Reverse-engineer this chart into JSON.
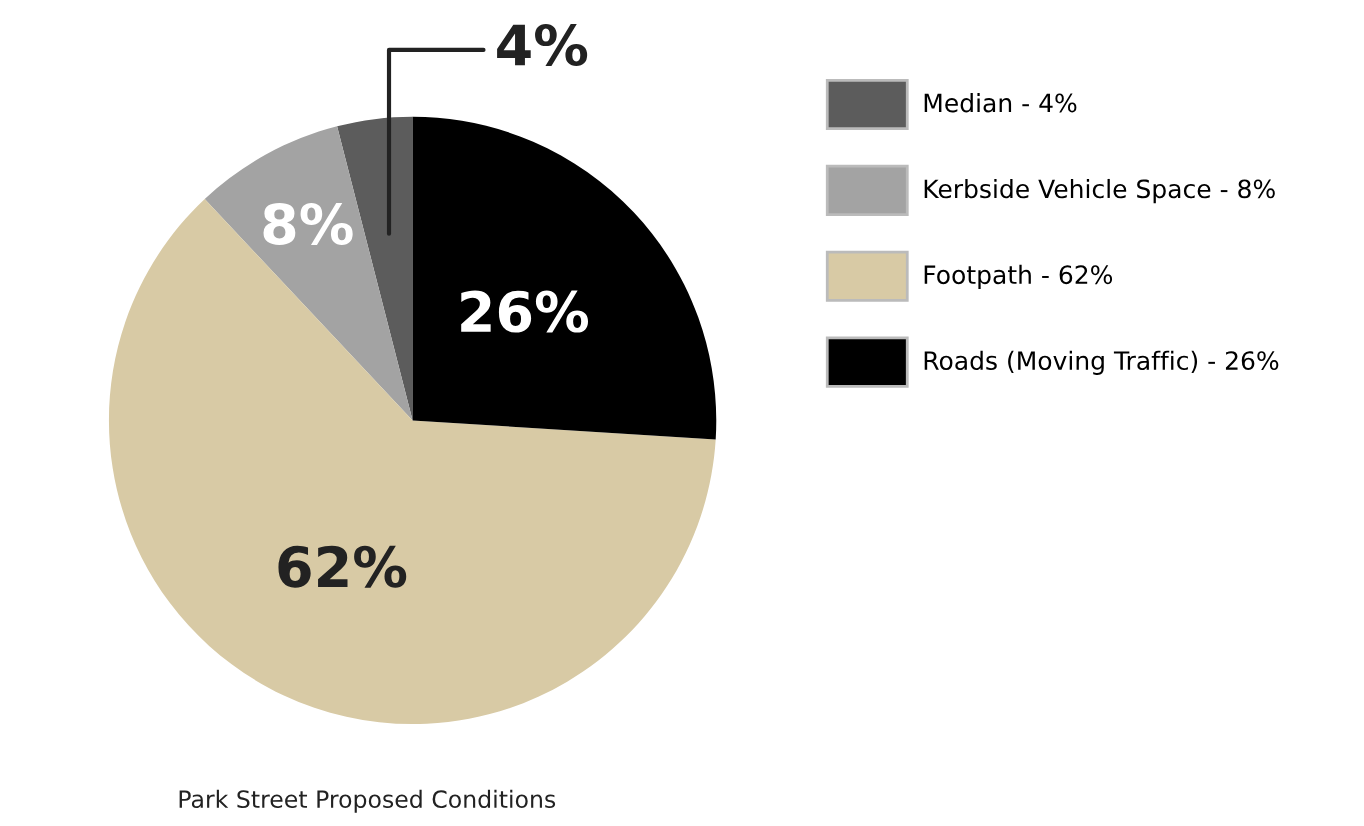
{
  "chart_data": {
    "type": "pie",
    "categories": [
      "Median - 4%",
      "Kerbside Vehicle Space - 8%",
      "Footpath - 62%",
      "Roads (Moving Traffic) - 26%"
    ],
    "values": [
      4,
      8,
      62,
      26
    ],
    "colors": [
      "#5c5c5c",
      "#a3a3a3",
      "#d8caa5",
      "#000000"
    ],
    "value_labels": [
      "4%",
      "8%",
      "62%",
      "26%"
    ],
    "legend": "right",
    "annotations": [
      "Park Street Proposed Conditions"
    ]
  }
}
